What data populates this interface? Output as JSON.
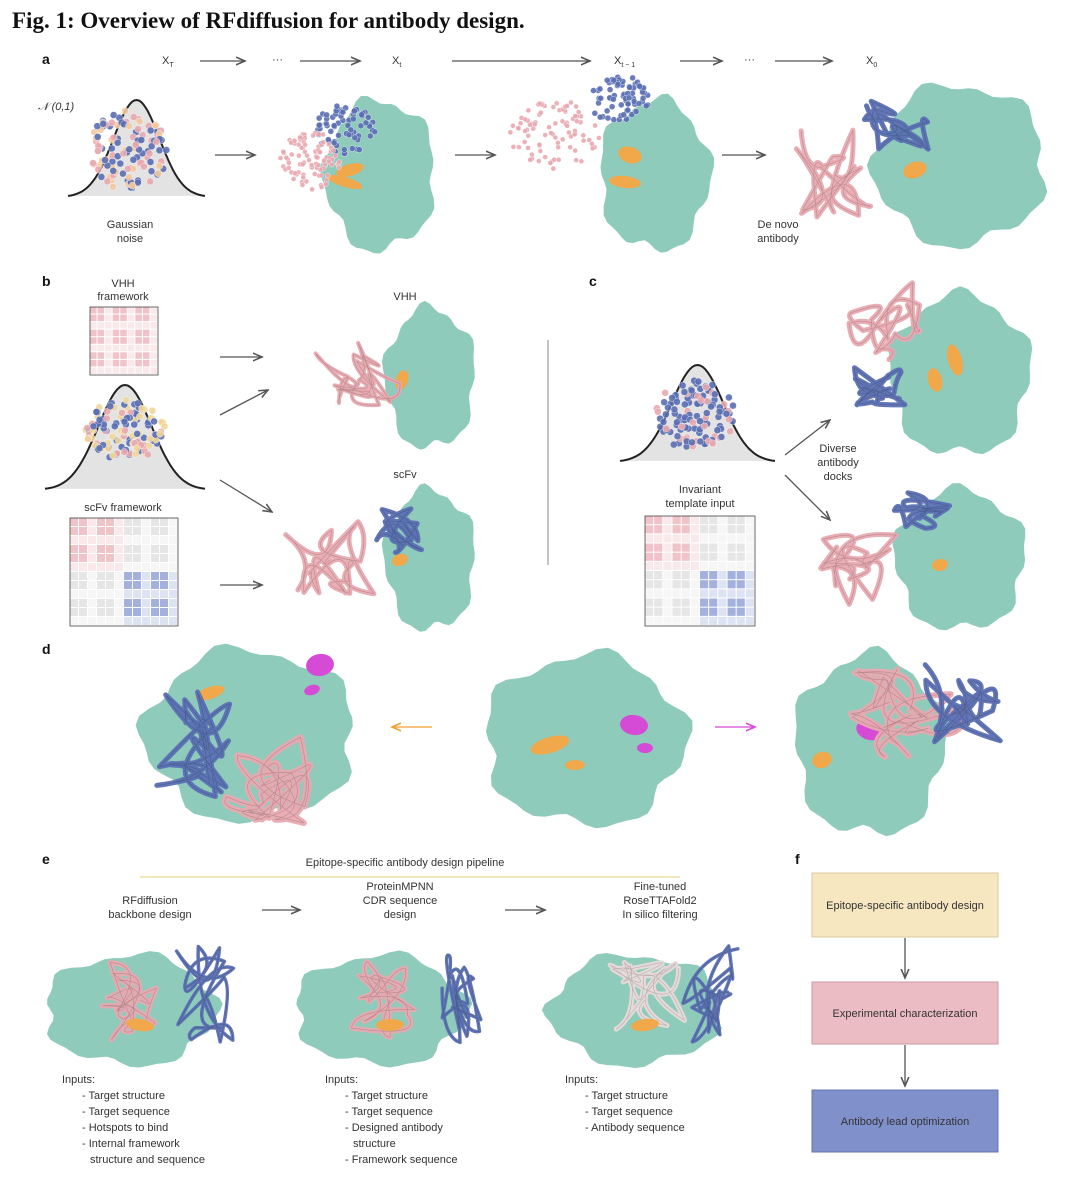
{
  "title": "Fig. 1: Overview of RFdiffusion for antibody design.",
  "panel_a": {
    "label": "a",
    "steps": [
      {
        "symbol": "X",
        "sub": "T"
      },
      "···",
      {
        "symbol": "X",
        "sub": "t"
      },
      {
        "symbol": "X",
        "sub": "t − 1"
      },
      "···",
      {
        "symbol": "X",
        "sub": "0"
      }
    ],
    "noise_symbol": "𝒩 (0,1)",
    "noise_label": [
      "Gaussian",
      "noise"
    ],
    "result_label": [
      "De novo",
      "antibody"
    ]
  },
  "panel_b": {
    "label": "b",
    "vhh_framework": [
      "VHH",
      "framework"
    ],
    "scfv_framework": "scFv framework",
    "vhh": "VHH",
    "scfv": "scFv"
  },
  "panel_c": {
    "label": "c",
    "template_label": [
      "Invariant",
      "template input"
    ],
    "docks_label": [
      "Diverse",
      "antibody",
      "docks"
    ]
  },
  "panel_d": {
    "label": "d"
  },
  "panel_e": {
    "label": "e",
    "title": "Epitope-specific antibody design pipeline",
    "steps": [
      {
        "title": [
          "RFdiffusion",
          "backbone design"
        ],
        "inputs_heading": "Inputs:",
        "inputs": [
          "- Target structure",
          "- Target sequence",
          "- Hotspots to bind",
          "- Internal framework",
          "structure and sequence"
        ]
      },
      {
        "title": [
          "ProteinMPNN",
          "CDR sequence",
          "design"
        ],
        "inputs_heading": "Inputs:",
        "inputs": [
          "- Target structure",
          "- Target sequence",
          "- Designed antibody",
          "structure",
          "- Framework sequence"
        ]
      },
      {
        "title": [
          "Fine-tuned",
          "RoseTTAFold2",
          "In silico filtering"
        ],
        "inputs_heading": "Inputs:",
        "inputs": [
          "- Target structure",
          "- Target sequence",
          "- Antibody sequence"
        ]
      }
    ]
  },
  "panel_f": {
    "label": "f",
    "boxes": [
      "Epitope-specific antibody design",
      "Experimental characterization",
      "Antibody lead optimization"
    ]
  }
}
